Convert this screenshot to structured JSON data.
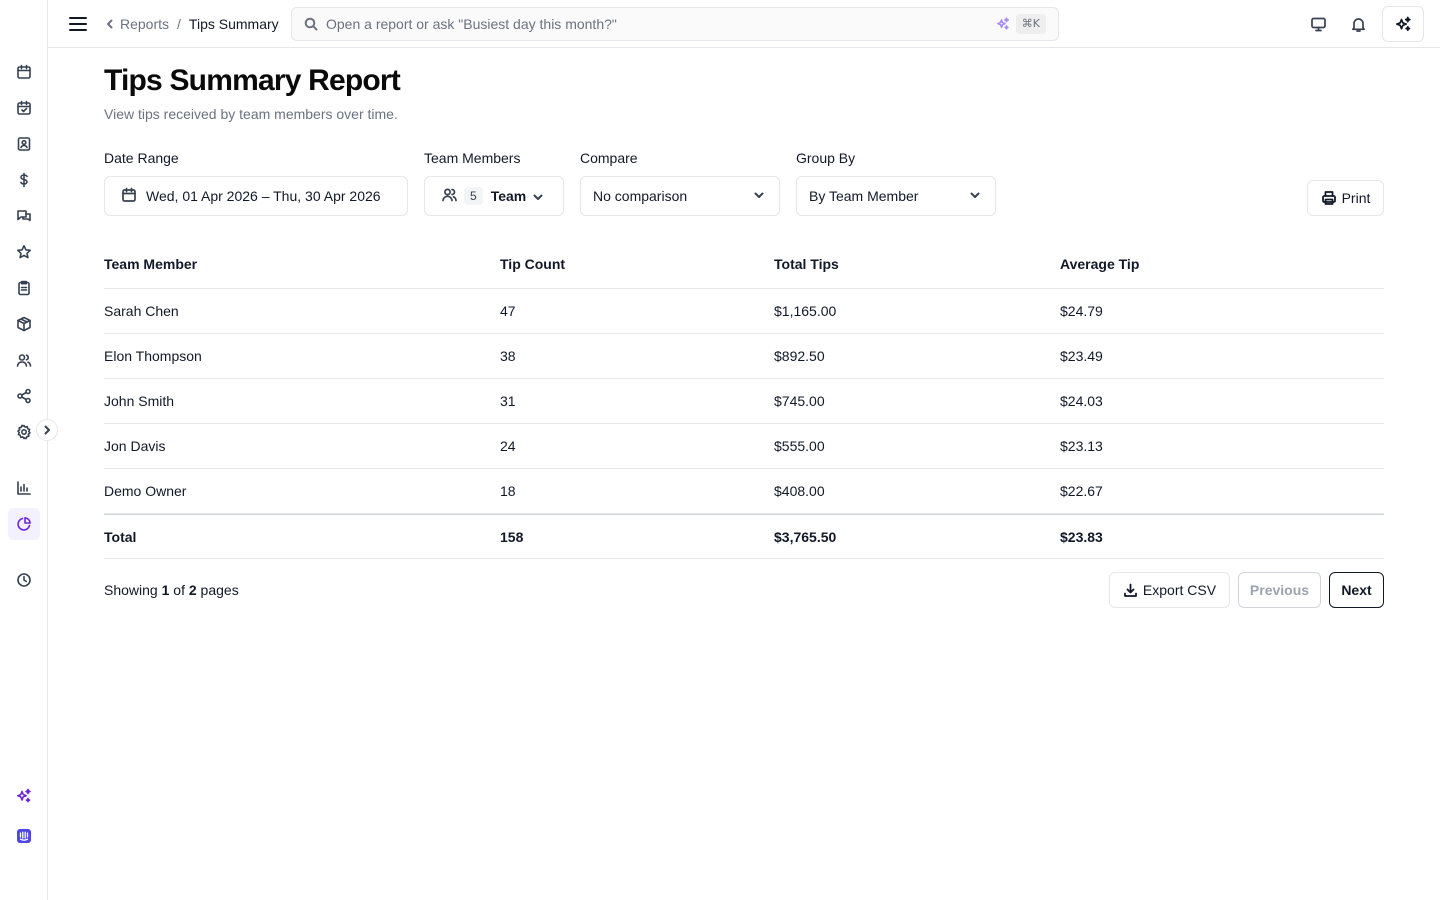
{
  "topbar": {
    "breadcrumb_parent": "Reports",
    "breadcrumb_separator": "/",
    "breadcrumb_current": "Tips Summary",
    "search_placeholder": "Open a report or ask \"Busiest day this month?\"",
    "search_shortcut": "⌘K"
  },
  "page": {
    "title": "Tips Summary Report",
    "subtitle": "View tips received by team members over time."
  },
  "filters": {
    "date_range_label": "Date Range",
    "date_range_value": "Wed, 01 Apr 2026 – Thu, 30 Apr 2026",
    "team_members_label": "Team Members",
    "team_members_count": "5",
    "team_members_value": "Team",
    "compare_label": "Compare",
    "compare_value": "No comparison",
    "group_by_label": "Group By",
    "group_by_value": "By Team Member",
    "print_label": "Print"
  },
  "table": {
    "headers": [
      "Team Member",
      "Tip Count",
      "Total Tips",
      "Average Tip"
    ],
    "rows": [
      [
        "Sarah Chen",
        "47",
        "$1,165.00",
        "$24.79"
      ],
      [
        "Elon Thompson",
        "38",
        "$892.50",
        "$23.49"
      ],
      [
        "John Smith",
        "31",
        "$745.00",
        "$24.03"
      ],
      [
        "Jon Davis",
        "24",
        "$555.00",
        "$23.13"
      ],
      [
        "Demo Owner",
        "18",
        "$408.00",
        "$22.67"
      ]
    ],
    "total": [
      "Total",
      "158",
      "$3,765.50",
      "$23.83"
    ]
  },
  "footer": {
    "showing_prefix": "Showing",
    "current_page": "1",
    "of_text": "of",
    "total_pages": "2",
    "pages_suffix": "pages",
    "export_label": "Export CSV",
    "previous_label": "Previous",
    "next_label": "Next"
  },
  "colors": {
    "accent": "#6d28d9",
    "border": "#e5e7eb",
    "muted_text": "#6b7280"
  },
  "sidebar_icons": [
    "calendar-icon",
    "calendar-check-icon",
    "contact-book-icon",
    "dollar-icon",
    "messages-icon",
    "star-icon",
    "clipboard-icon",
    "package-icon",
    "users-icon",
    "share-icon",
    "gear-icon",
    "bar-chart-icon",
    "pie-chart-icon",
    "clock-icon",
    "sparkles-icon",
    "intercom-icon"
  ]
}
